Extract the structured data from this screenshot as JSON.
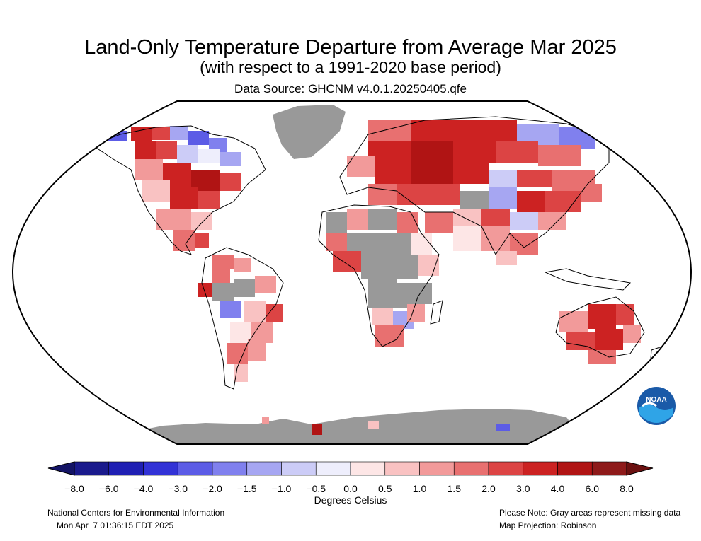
{
  "header": {
    "title": "Land-Only Temperature Departure from Average Mar 2025",
    "subtitle": "(with respect to a 1991-2020 base period)",
    "source": "Data Source: GHCNM v4.0.1.20250405.qfe"
  },
  "legend": {
    "ticks": [
      "−8.0",
      "−6.0",
      "−4.0",
      "−3.0",
      "−2.0",
      "−1.5",
      "−1.0",
      "−0.5",
      "0.0",
      "0.5",
      "1.0",
      "1.5",
      "2.0",
      "3.0",
      "4.0",
      "6.0",
      "8.0"
    ],
    "units": "Degrees Celsius",
    "colors": [
      "#1a1a8c",
      "#1f1fb3",
      "#3232d6",
      "#5c5ce6",
      "#8080ee",
      "#a6a6f2",
      "#ccccf7",
      "#eeeefc",
      "#fde6e6",
      "#f9c2c2",
      "#f29a9a",
      "#e87070",
      "#dc4444",
      "#cc2222",
      "#b01414",
      "#8e1a1a"
    ],
    "left_arrow_color": "#141466",
    "right_arrow_color": "#6b1010"
  },
  "palette": {
    "missing": "#999999",
    "ocean": "#ffffff"
  },
  "footer": {
    "org": "National Centers for Environmental Information",
    "timestamp": "Mon Apr  7 01:36:15 EDT 2025",
    "note": "Please Note: Gray areas represent missing data",
    "projection": "Map Projection: Robinson"
  },
  "logo": {
    "text": "NOAA"
  }
}
